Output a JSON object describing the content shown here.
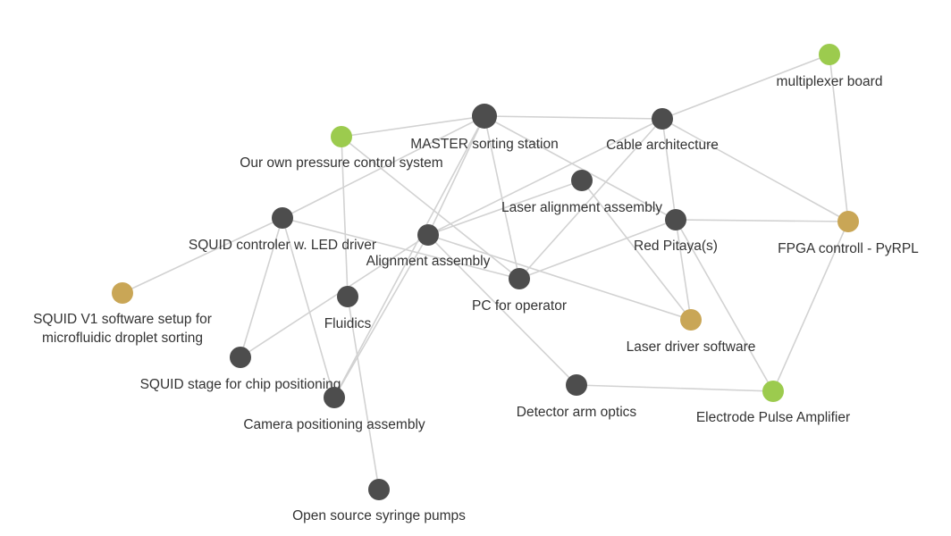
{
  "colors": {
    "default": "#4d4d4d",
    "green": "#9ccb4e",
    "tan": "#c9a656",
    "edge": "#d2d2d2",
    "label": "#333333"
  },
  "nodes": [
    {
      "id": "master",
      "label": "MASTER sorting station",
      "color": "default"
    },
    {
      "id": "cable",
      "label": "Cable architecture",
      "color": "default"
    },
    {
      "id": "multiplexer",
      "label": "multiplexer board",
      "color": "green"
    },
    {
      "id": "pressure",
      "label": "Our own pressure control system",
      "color": "green"
    },
    {
      "id": "laser_align",
      "label": "Laser alignment assembly",
      "color": "default"
    },
    {
      "id": "squid_ctrl",
      "label": "SQUID controler w. LED driver",
      "color": "default"
    },
    {
      "id": "red_pitaya",
      "label": "Red Pitaya(s)",
      "color": "default"
    },
    {
      "id": "fpga",
      "label": "FPGA controll - PyRPL",
      "color": "tan"
    },
    {
      "id": "align",
      "label": "Alignment assembly",
      "color": "default"
    },
    {
      "id": "pc",
      "label": "PC for operator",
      "color": "default"
    },
    {
      "id": "squid_v1",
      "label": [
        "SQUID V1 software setup for",
        "microfluidic droplet sorting"
      ],
      "color": "tan"
    },
    {
      "id": "fluidics",
      "label": "Fluidics",
      "color": "default"
    },
    {
      "id": "laser_driver",
      "label": "Laser driver software",
      "color": "tan"
    },
    {
      "id": "squid_stage",
      "label": "SQUID stage for chip positioning",
      "color": "default"
    },
    {
      "id": "camera",
      "label": "Camera positioning assembly",
      "color": "default"
    },
    {
      "id": "detector",
      "label": "Detector arm optics",
      "color": "default"
    },
    {
      "id": "electrode",
      "label": "Electrode Pulse Amplifier",
      "color": "green"
    },
    {
      "id": "syringe",
      "label": "Open source syringe pumps",
      "color": "default"
    }
  ],
  "edges": [
    [
      "master",
      "cable"
    ],
    [
      "master",
      "pressure"
    ],
    [
      "master",
      "squid_ctrl"
    ],
    [
      "master",
      "pc"
    ],
    [
      "master",
      "align"
    ],
    [
      "master",
      "camera"
    ],
    [
      "master",
      "red_pitaya"
    ],
    [
      "cable",
      "multiplexer"
    ],
    [
      "cable",
      "fpga"
    ],
    [
      "cable",
      "red_pitaya"
    ],
    [
      "cable",
      "align"
    ],
    [
      "cable",
      "pc"
    ],
    [
      "multiplexer",
      "fpga"
    ],
    [
      "pressure",
      "pc"
    ],
    [
      "pressure",
      "fluidics"
    ],
    [
      "laser_align",
      "align"
    ],
    [
      "laser_align",
      "laser_driver"
    ],
    [
      "squid_ctrl",
      "squid_v1"
    ],
    [
      "squid_ctrl",
      "squid_stage"
    ],
    [
      "squid_ctrl",
      "camera"
    ],
    [
      "squid_ctrl",
      "pc"
    ],
    [
      "red_pitaya",
      "fpga"
    ],
    [
      "red_pitaya",
      "laser_driver"
    ],
    [
      "red_pitaya",
      "electrode"
    ],
    [
      "red_pitaya",
      "pc"
    ],
    [
      "fpga",
      "electrode"
    ],
    [
      "align",
      "squid_stage"
    ],
    [
      "align",
      "camera"
    ],
    [
      "align",
      "laser_driver"
    ],
    [
      "align",
      "detector"
    ],
    [
      "fluidics",
      "syringe"
    ],
    [
      "detector",
      "electrode"
    ]
  ]
}
